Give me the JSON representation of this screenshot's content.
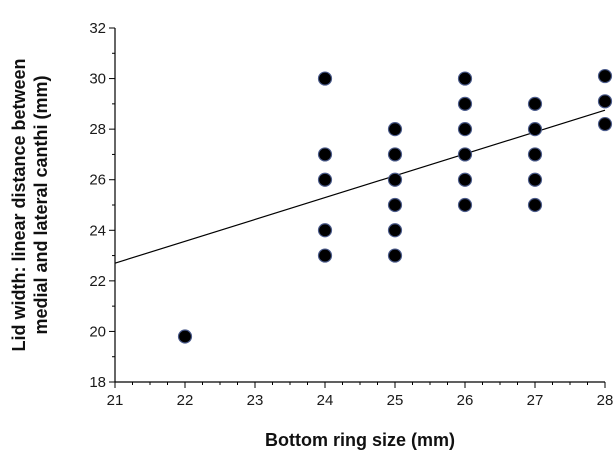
{
  "chart_data": {
    "type": "scatter",
    "xlabel": "Bottom ring size (mm)",
    "ylabel_lines": [
      "Lid width: linear distance between",
      "medial and lateral canthi (mm)"
    ],
    "xlim": [
      21,
      28
    ],
    "ylim": [
      18,
      32
    ],
    "x_ticks": [
      "21",
      "22",
      "23",
      "24",
      "25",
      "26",
      "27",
      "28"
    ],
    "y_ticks": [
      "18",
      "20",
      "22",
      "24",
      "26",
      "28",
      "30",
      "32"
    ],
    "grid": false,
    "points": [
      {
        "x": 22,
        "y": 19.8
      },
      {
        "x": 24,
        "y": 30
      },
      {
        "x": 24,
        "y": 27
      },
      {
        "x": 24,
        "y": 26
      },
      {
        "x": 24,
        "y": 24
      },
      {
        "x": 24,
        "y": 23
      },
      {
        "x": 25,
        "y": 28
      },
      {
        "x": 25,
        "y": 27
      },
      {
        "x": 25,
        "y": 26
      },
      {
        "x": 25,
        "y": 25
      },
      {
        "x": 25,
        "y": 24
      },
      {
        "x": 25,
        "y": 23
      },
      {
        "x": 26,
        "y": 30
      },
      {
        "x": 26,
        "y": 29
      },
      {
        "x": 26,
        "y": 28
      },
      {
        "x": 26,
        "y": 27
      },
      {
        "x": 26,
        "y": 26
      },
      {
        "x": 26,
        "y": 25
      },
      {
        "x": 27,
        "y": 29
      },
      {
        "x": 27,
        "y": 28
      },
      {
        "x": 27,
        "y": 27
      },
      {
        "x": 27,
        "y": 26
      },
      {
        "x": 27,
        "y": 25
      },
      {
        "x": 28,
        "y": 30.1
      },
      {
        "x": 28,
        "y": 29.1
      },
      {
        "x": 28,
        "y": 28.2
      }
    ],
    "trendline": {
      "x": [
        21,
        28
      ],
      "y": [
        22.7,
        28.75
      ]
    },
    "colors": {
      "marker": "#000000",
      "marker_edge": "#4a5a8a",
      "line": "#000000",
      "axis": "#000000"
    }
  }
}
